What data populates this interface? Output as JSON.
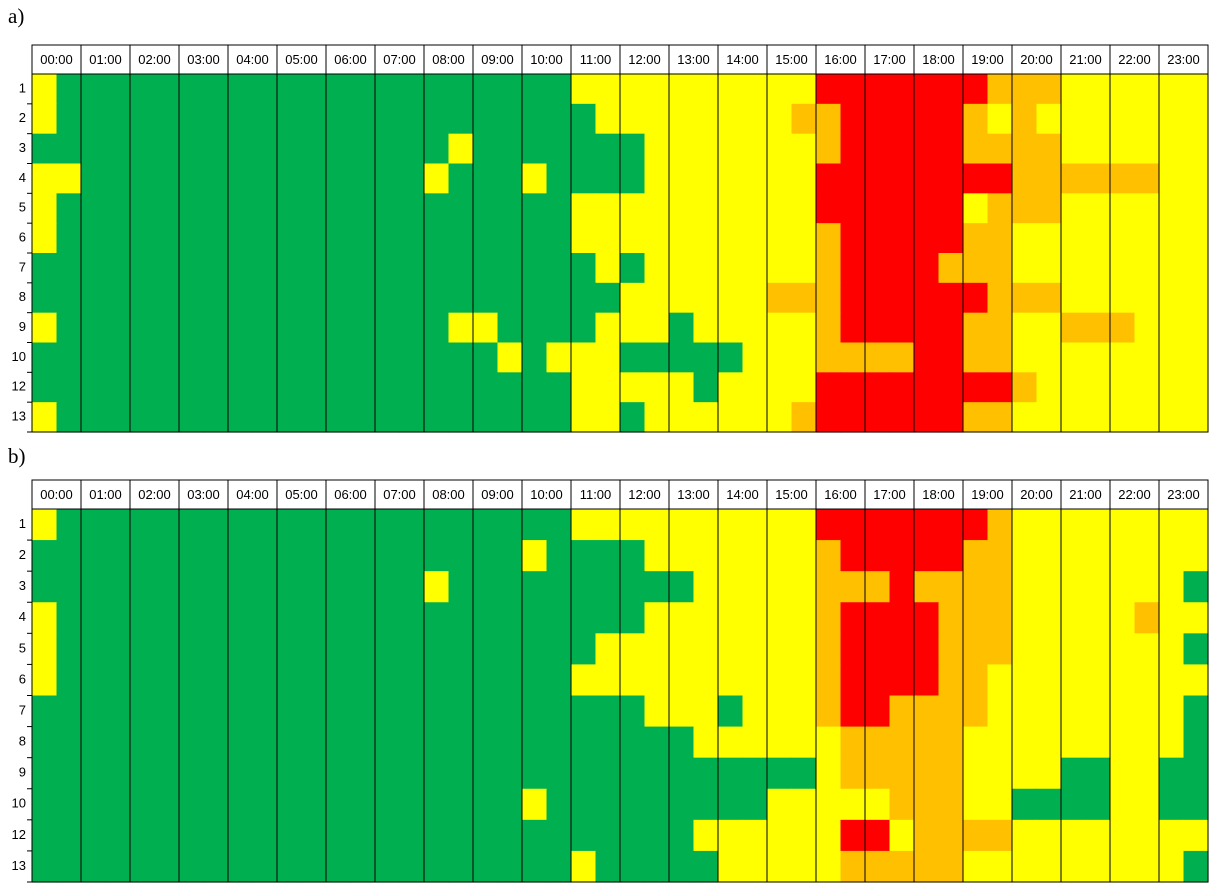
{
  "chart_data": [
    {
      "type": "heatmap",
      "title": "a)",
      "categories": [
        "00:00",
        "01:00",
        "02:00",
        "03:00",
        "04:00",
        "05:00",
        "06:00",
        "07:00",
        "08:00",
        "09:00",
        "10:00",
        "11:00",
        "12:00",
        "13:00",
        "14:00",
        "15:00",
        "16:00",
        "17:00",
        "18:00",
        "19:00",
        "20:00",
        "21:00",
        "22:00",
        "23:00"
      ],
      "rows": [
        "1",
        "2",
        "3",
        "4",
        "5",
        "6",
        "7",
        "8",
        "9",
        "10",
        "12",
        "13"
      ],
      "colors": [
        "#00b050",
        "#ffff00",
        "#ffc000",
        "#ff0000"
      ],
      "values": [
        [
          1,
          0,
          0,
          0,
          0,
          0,
          0,
          0,
          0,
          0,
          0,
          0,
          0,
          0,
          0,
          0,
          0,
          0,
          0,
          0,
          0,
          0,
          1,
          1,
          1,
          1,
          1,
          1,
          1,
          1,
          1,
          1,
          3,
          3,
          3,
          3,
          3,
          3,
          3,
          2,
          2,
          2,
          1,
          1,
          1,
          1,
          1,
          1
        ],
        [
          1,
          0,
          0,
          0,
          0,
          0,
          0,
          0,
          0,
          0,
          0,
          0,
          0,
          0,
          0,
          0,
          0,
          0,
          0,
          0,
          0,
          0,
          0,
          1,
          1,
          1,
          1,
          1,
          1,
          1,
          1,
          2,
          2,
          3,
          3,
          3,
          3,
          3,
          2,
          1,
          2,
          1,
          1,
          1,
          1,
          1,
          1,
          1
        ],
        [
          0,
          0,
          0,
          0,
          0,
          0,
          0,
          0,
          0,
          0,
          0,
          0,
          0,
          0,
          0,
          0,
          0,
          1,
          0,
          0,
          0,
          0,
          0,
          0,
          0,
          1,
          1,
          1,
          1,
          1,
          1,
          1,
          2,
          3,
          3,
          3,
          3,
          3,
          2,
          2,
          2,
          2,
          1,
          1,
          1,
          1,
          1,
          1
        ],
        [
          1,
          1,
          0,
          0,
          0,
          0,
          0,
          0,
          0,
          0,
          0,
          0,
          0,
          0,
          0,
          0,
          1,
          0,
          0,
          0,
          1,
          0,
          0,
          0,
          0,
          1,
          1,
          1,
          1,
          1,
          1,
          1,
          3,
          3,
          3,
          3,
          3,
          3,
          3,
          3,
          2,
          2,
          2,
          2,
          2,
          2,
          1,
          1
        ],
        [
          1,
          0,
          0,
          0,
          0,
          0,
          0,
          0,
          0,
          0,
          0,
          0,
          0,
          0,
          0,
          0,
          0,
          0,
          0,
          0,
          0,
          0,
          1,
          1,
          1,
          1,
          1,
          1,
          1,
          1,
          1,
          1,
          3,
          3,
          3,
          3,
          3,
          3,
          1,
          2,
          2,
          2,
          1,
          1,
          1,
          1,
          1,
          1
        ],
        [
          1,
          0,
          0,
          0,
          0,
          0,
          0,
          0,
          0,
          0,
          0,
          0,
          0,
          0,
          0,
          0,
          0,
          0,
          0,
          0,
          0,
          0,
          1,
          1,
          1,
          1,
          1,
          1,
          1,
          1,
          1,
          1,
          2,
          3,
          3,
          3,
          3,
          3,
          2,
          2,
          1,
          1,
          1,
          1,
          1,
          1,
          1,
          1
        ],
        [
          0,
          0,
          0,
          0,
          0,
          0,
          0,
          0,
          0,
          0,
          0,
          0,
          0,
          0,
          0,
          0,
          0,
          0,
          0,
          0,
          0,
          0,
          0,
          1,
          0,
          1,
          1,
          1,
          1,
          1,
          1,
          1,
          2,
          3,
          3,
          3,
          3,
          2,
          2,
          2,
          1,
          1,
          1,
          1,
          1,
          1,
          1,
          1
        ],
        [
          0,
          0,
          0,
          0,
          0,
          0,
          0,
          0,
          0,
          0,
          0,
          0,
          0,
          0,
          0,
          0,
          0,
          0,
          0,
          0,
          0,
          0,
          0,
          0,
          1,
          1,
          1,
          1,
          1,
          1,
          2,
          2,
          2,
          3,
          3,
          3,
          3,
          3,
          3,
          2,
          2,
          2,
          1,
          1,
          1,
          1,
          1,
          1
        ],
        [
          1,
          0,
          0,
          0,
          0,
          0,
          0,
          0,
          0,
          0,
          0,
          0,
          0,
          0,
          0,
          0,
          0,
          1,
          1,
          0,
          0,
          0,
          0,
          1,
          1,
          1,
          0,
          1,
          1,
          1,
          1,
          1,
          2,
          3,
          3,
          3,
          3,
          3,
          2,
          2,
          1,
          1,
          2,
          2,
          2,
          1,
          1,
          1
        ],
        [
          0,
          0,
          0,
          0,
          0,
          0,
          0,
          0,
          0,
          0,
          0,
          0,
          0,
          0,
          0,
          0,
          0,
          0,
          0,
          1,
          0,
          1,
          1,
          1,
          0,
          0,
          0,
          0,
          0,
          1,
          1,
          1,
          2,
          2,
          2,
          2,
          3,
          3,
          2,
          2,
          1,
          1,
          1,
          1,
          1,
          1,
          1,
          1
        ],
        [
          0,
          0,
          0,
          0,
          0,
          0,
          0,
          0,
          0,
          0,
          0,
          0,
          0,
          0,
          0,
          0,
          0,
          0,
          0,
          0,
          0,
          0,
          1,
          1,
          1,
          1,
          1,
          0,
          1,
          1,
          1,
          1,
          3,
          3,
          3,
          3,
          3,
          3,
          3,
          3,
          2,
          1,
          1,
          1,
          1,
          1,
          1,
          1
        ],
        [
          1,
          0,
          0,
          0,
          0,
          0,
          0,
          0,
          0,
          0,
          0,
          0,
          0,
          0,
          0,
          0,
          0,
          0,
          0,
          0,
          0,
          0,
          1,
          1,
          0,
          1,
          1,
          1,
          1,
          1,
          1,
          2,
          3,
          3,
          3,
          3,
          3,
          3,
          2,
          2,
          1,
          1,
          1,
          1,
          1,
          1,
          1,
          1
        ]
      ]
    },
    {
      "type": "heatmap",
      "title": "b)",
      "categories": [
        "00:00",
        "01:00",
        "02:00",
        "03:00",
        "04:00",
        "05:00",
        "06:00",
        "07:00",
        "08:00",
        "09:00",
        "10:00",
        "11:00",
        "12:00",
        "13:00",
        "14:00",
        "15:00",
        "16:00",
        "17:00",
        "18:00",
        "19:00",
        "20:00",
        "21:00",
        "22:00",
        "23:00"
      ],
      "rows": [
        "1",
        "2",
        "3",
        "4",
        "5",
        "6",
        "7",
        "8",
        "9",
        "10",
        "12",
        "13"
      ],
      "colors": [
        "#00b050",
        "#ffff00",
        "#ffc000",
        "#ff0000"
      ],
      "values": [
        [
          1,
          0,
          0,
          0,
          0,
          0,
          0,
          0,
          0,
          0,
          0,
          0,
          0,
          0,
          0,
          0,
          0,
          0,
          0,
          0,
          0,
          0,
          1,
          1,
          1,
          1,
          1,
          1,
          1,
          1,
          1,
          1,
          3,
          3,
          3,
          3,
          3,
          3,
          3,
          2,
          1,
          1,
          1,
          1,
          1,
          1,
          1,
          1
        ],
        [
          0,
          0,
          0,
          0,
          0,
          0,
          0,
          0,
          0,
          0,
          0,
          0,
          0,
          0,
          0,
          0,
          0,
          0,
          0,
          0,
          1,
          0,
          0,
          0,
          0,
          1,
          1,
          1,
          1,
          1,
          1,
          1,
          2,
          3,
          3,
          3,
          3,
          3,
          2,
          2,
          1,
          1,
          1,
          1,
          1,
          1,
          1,
          1
        ],
        [
          0,
          0,
          0,
          0,
          0,
          0,
          0,
          0,
          0,
          0,
          0,
          0,
          0,
          0,
          0,
          0,
          1,
          0,
          0,
          0,
          0,
          0,
          0,
          0,
          0,
          0,
          0,
          1,
          1,
          1,
          1,
          1,
          2,
          2,
          2,
          3,
          2,
          2,
          2,
          2,
          1,
          1,
          1,
          1,
          1,
          1,
          1,
          0
        ],
        [
          1,
          0,
          0,
          0,
          0,
          0,
          0,
          0,
          0,
          0,
          0,
          0,
          0,
          0,
          0,
          0,
          0,
          0,
          0,
          0,
          0,
          0,
          0,
          0,
          0,
          1,
          1,
          1,
          1,
          1,
          1,
          1,
          2,
          3,
          3,
          3,
          3,
          2,
          2,
          2,
          1,
          1,
          1,
          1,
          1,
          2,
          1,
          1
        ],
        [
          1,
          0,
          0,
          0,
          0,
          0,
          0,
          0,
          0,
          0,
          0,
          0,
          0,
          0,
          0,
          0,
          0,
          0,
          0,
          0,
          0,
          0,
          0,
          1,
          1,
          1,
          1,
          1,
          1,
          1,
          1,
          1,
          2,
          3,
          3,
          3,
          3,
          2,
          2,
          2,
          1,
          1,
          1,
          1,
          1,
          1,
          1,
          0
        ],
        [
          1,
          0,
          0,
          0,
          0,
          0,
          0,
          0,
          0,
          0,
          0,
          0,
          0,
          0,
          0,
          0,
          0,
          0,
          0,
          0,
          0,
          0,
          1,
          1,
          1,
          1,
          1,
          1,
          1,
          1,
          1,
          1,
          2,
          3,
          3,
          3,
          3,
          2,
          2,
          1,
          1,
          1,
          1,
          1,
          1,
          1,
          1,
          1
        ],
        [
          0,
          0,
          0,
          0,
          0,
          0,
          0,
          0,
          0,
          0,
          0,
          0,
          0,
          0,
          0,
          0,
          0,
          0,
          0,
          0,
          0,
          0,
          0,
          0,
          0,
          1,
          1,
          1,
          0,
          1,
          1,
          1,
          2,
          3,
          3,
          2,
          2,
          2,
          2,
          1,
          1,
          1,
          1,
          1,
          1,
          1,
          1,
          0
        ],
        [
          0,
          0,
          0,
          0,
          0,
          0,
          0,
          0,
          0,
          0,
          0,
          0,
          0,
          0,
          0,
          0,
          0,
          0,
          0,
          0,
          0,
          0,
          0,
          0,
          0,
          0,
          0,
          1,
          1,
          1,
          1,
          1,
          1,
          2,
          2,
          2,
          2,
          2,
          1,
          1,
          1,
          1,
          1,
          1,
          1,
          1,
          1,
          0
        ],
        [
          0,
          0,
          0,
          0,
          0,
          0,
          0,
          0,
          0,
          0,
          0,
          0,
          0,
          0,
          0,
          0,
          0,
          0,
          0,
          0,
          0,
          0,
          0,
          0,
          0,
          0,
          0,
          0,
          0,
          0,
          0,
          0,
          1,
          2,
          2,
          2,
          2,
          2,
          1,
          1,
          1,
          1,
          0,
          0,
          1,
          1,
          0,
          0
        ],
        [
          0,
          0,
          0,
          0,
          0,
          0,
          0,
          0,
          0,
          0,
          0,
          0,
          0,
          0,
          0,
          0,
          0,
          0,
          0,
          0,
          1,
          0,
          0,
          0,
          0,
          0,
          0,
          0,
          0,
          0,
          1,
          1,
          1,
          1,
          1,
          2,
          2,
          2,
          1,
          1,
          0,
          0,
          0,
          0,
          1,
          1,
          0,
          0
        ],
        [
          0,
          0,
          0,
          0,
          0,
          0,
          0,
          0,
          0,
          0,
          0,
          0,
          0,
          0,
          0,
          0,
          0,
          0,
          0,
          0,
          0,
          0,
          0,
          0,
          0,
          0,
          0,
          1,
          1,
          1,
          1,
          1,
          1,
          3,
          3,
          1,
          2,
          2,
          2,
          2,
          1,
          1,
          1,
          1,
          1,
          1,
          1,
          1
        ],
        [
          0,
          0,
          0,
          0,
          0,
          0,
          0,
          0,
          0,
          0,
          0,
          0,
          0,
          0,
          0,
          0,
          0,
          0,
          0,
          0,
          0,
          0,
          1,
          0,
          0,
          0,
          0,
          0,
          1,
          1,
          1,
          1,
          1,
          2,
          2,
          2,
          2,
          2,
          1,
          1,
          1,
          1,
          1,
          1,
          1,
          1,
          1,
          0
        ]
      ]
    }
  ]
}
